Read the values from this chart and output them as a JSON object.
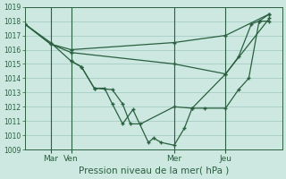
{
  "background_color": "#cce8e0",
  "grid_color": "#a8ccc4",
  "line_color": "#2a6040",
  "title": "Pression niveau de la mer( hPa )",
  "ylim": [
    1009,
    1019
  ],
  "yticks": [
    1009,
    1010,
    1011,
    1012,
    1013,
    1014,
    1015,
    1016,
    1017,
    1018,
    1019
  ],
  "xlim": [
    0,
    10
  ],
  "vlines_x": [
    1.0,
    1.8,
    5.8,
    7.8
  ],
  "xlabel_ticks": [
    1.0,
    1.8,
    5.8,
    7.8
  ],
  "xlabel_labels": [
    "Mar",
    "Ven",
    "Mer",
    "Jeu"
  ],
  "line1_x": [
    0.0,
    1.0,
    1.8,
    2.2,
    2.7,
    3.4,
    3.8,
    4.1,
    4.5,
    5.8,
    6.5,
    7.8,
    8.3,
    8.8,
    9.1,
    9.5
  ],
  "line1_y": [
    1017.8,
    1016.5,
    1015.2,
    1014.8,
    1013.3,
    1013.2,
    1012.2,
    1010.8,
    1010.8,
    1012.0,
    1011.9,
    1014.3,
    1015.5,
    1017.8,
    1018.0,
    1018.5
  ],
  "line2_x": [
    0.0,
    1.0,
    1.8,
    5.8,
    7.8,
    9.5
  ],
  "line2_y": [
    1017.8,
    1016.4,
    1016.0,
    1016.5,
    1017.0,
    1018.5
  ],
  "line3_x": [
    0.0,
    1.0,
    1.8,
    5.8,
    7.8,
    9.5
  ],
  "line3_y": [
    1017.8,
    1016.4,
    1015.8,
    1015.0,
    1014.3,
    1018.2
  ],
  "line4_x": [
    1.8,
    2.2,
    2.7,
    3.1,
    3.4,
    3.8,
    4.2,
    4.8,
    5.0,
    5.3,
    5.8,
    6.2,
    6.5,
    7.0,
    7.8,
    8.3,
    8.7,
    9.1,
    9.5
  ],
  "line4_y": [
    1015.2,
    1014.8,
    1013.3,
    1013.3,
    1012.2,
    1010.8,
    1011.8,
    1009.5,
    1009.8,
    1009.5,
    1009.3,
    1010.5,
    1011.9,
    1011.9,
    1011.9,
    1013.2,
    1014.0,
    1018.0,
    1018.0
  ]
}
